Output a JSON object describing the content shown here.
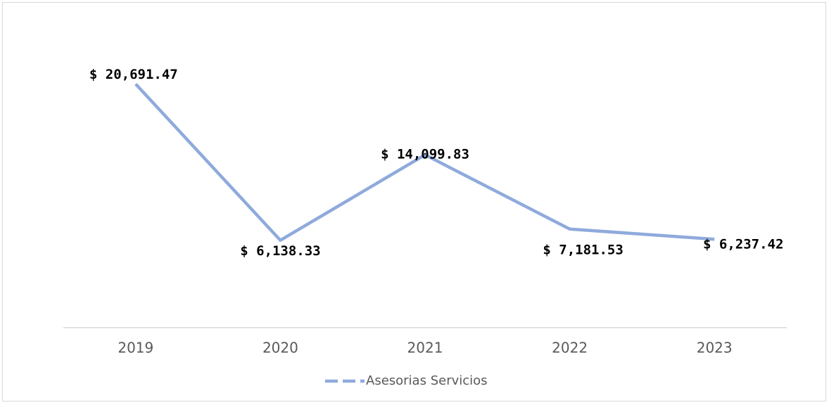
{
  "chart_data": {
    "type": "line",
    "categories": [
      "2019",
      "2020",
      "2021",
      "2022",
      "2023"
    ],
    "series": [
      {
        "name": "Asesorias Servicios",
        "color": "#8faadc",
        "values": [
          20691.47,
          6138.33,
          14099.83,
          7181.53,
          6237.42
        ],
        "value_labels": [
          "$ 20,691.47",
          "$ 6,138.33",
          "$ 14,099.83",
          "$ 7,181.53",
          "$ 6,237.42"
        ]
      }
    ],
    "ylim": [
      -2000,
      24000
    ]
  }
}
